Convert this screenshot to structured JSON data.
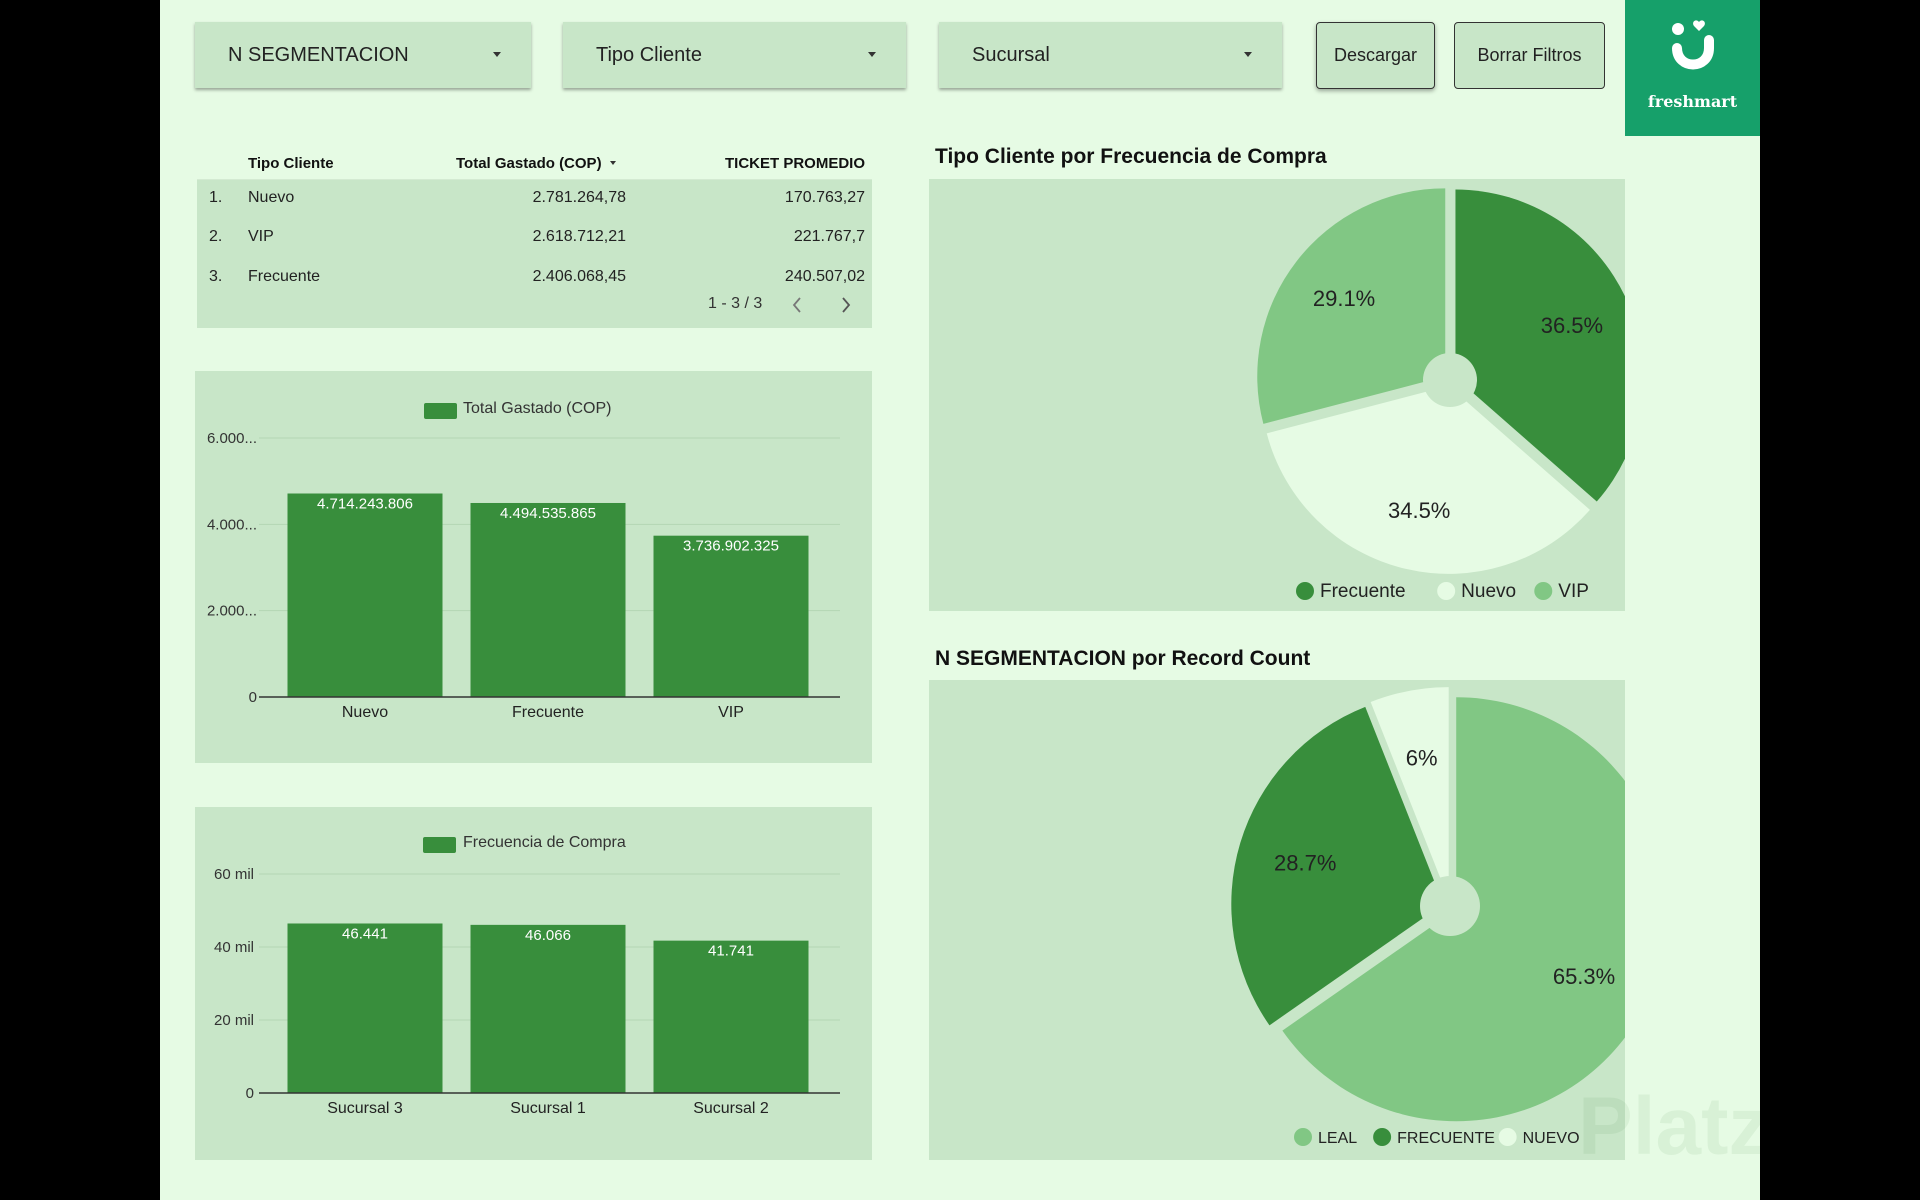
{
  "filters": {
    "segmentacion": "N SEGMENTACION",
    "tipo_cliente": "Tipo Cliente",
    "sucursal": "Sucursal"
  },
  "buttons": {
    "descargar": "Descargar",
    "borrar_filtros": "Borrar Filtros"
  },
  "logo": {
    "text": "freshmart"
  },
  "table": {
    "headers": [
      "Tipo Cliente",
      "Total Gastado (COP)",
      "TICKET PROMEDIO"
    ],
    "rows": [
      {
        "index": "1.",
        "tipo": "Nuevo",
        "total": "2.781.264,78",
        "ticket": "170.763,27"
      },
      {
        "index": "2.",
        "tipo": "VIP",
        "total": "2.618.712,21",
        "ticket": "221.767,7"
      },
      {
        "index": "3.",
        "tipo": "Frecuente",
        "total": "2.406.068,45",
        "ticket": "240.507,02"
      }
    ],
    "pagination": "1 - 3 / 3"
  },
  "chart_data": [
    {
      "type": "bar",
      "categories": [
        "Nuevo",
        "Frecuente",
        "VIP"
      ],
      "series": [
        {
          "name": "Total Gastado (COP)",
          "values": [
            4714243806,
            4494535865,
            3736902325
          ]
        }
      ],
      "data_labels": [
        "4.714.243.806",
        "4.494.535.865",
        "3.736.902.325"
      ],
      "yticks": [
        "0",
        "2.000...",
        "4.000...",
        "6.000..."
      ],
      "ylim": [
        0,
        6000000000
      ],
      "legend": "top-left",
      "grid": true
    },
    {
      "type": "bar",
      "categories": [
        "Sucursal 3",
        "Sucursal 1",
        "Sucursal 2"
      ],
      "series": [
        {
          "name": "Frecuencia de Compra",
          "values": [
            46441,
            46066,
            41741
          ]
        }
      ],
      "data_labels": [
        "46.441",
        "46.066",
        "41.741"
      ],
      "yticks": [
        "0",
        "20 mil",
        "40 mil",
        "60 mil"
      ],
      "ylim": [
        0,
        60000
      ],
      "legend": "top-left",
      "grid": true
    },
    {
      "type": "pie",
      "title": "Tipo Cliente por Frecuencia de Compra",
      "labels": [
        "Frecuente",
        "Nuevo",
        "VIP"
      ],
      "values": [
        36.5,
        34.5,
        29.1
      ],
      "value_labels": [
        "36.5%",
        "34.5%",
        "29.1%"
      ],
      "colors": [
        "#388e3c",
        "#e6fbe4",
        "#81c784"
      ],
      "legend": "bottom"
    },
    {
      "type": "pie",
      "title": "N SEGMENTACION por Record Count",
      "labels": [
        "LEAL",
        "FRECUENTE",
        "NUEVO"
      ],
      "values": [
        65.3,
        28.7,
        6
      ],
      "value_labels": [
        "65.3%",
        "28.7%",
        "6%"
      ],
      "colors": [
        "#81c784",
        "#388e3c",
        "#e6fbe4"
      ],
      "legend": "bottom"
    }
  ],
  "watermark": "Platzi"
}
